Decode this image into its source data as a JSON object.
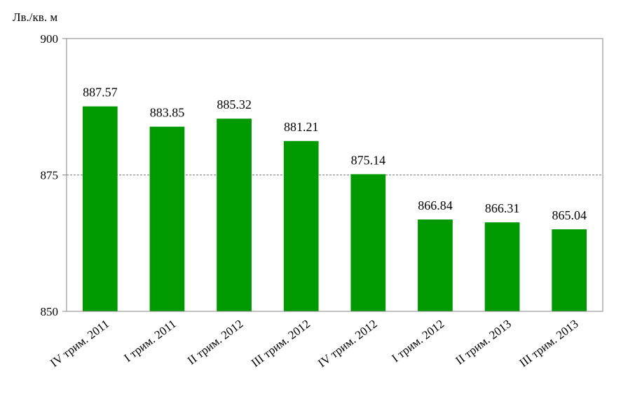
{
  "chart_data": {
    "type": "bar",
    "ylabel": "Лв./кв. м",
    "categories": [
      "IV трим. 2011",
      "I трим. 2011",
      "II трим. 2012",
      "III трим. 2012",
      "IV трим. 2012",
      "I трим. 2012",
      "II трим. 2013",
      "III трим. 2013"
    ],
    "values": [
      887.57,
      883.85,
      885.32,
      881.21,
      875.14,
      866.84,
      866.31,
      865.04
    ],
    "value_labels": [
      "887.57",
      "883.85",
      "885.32",
      "881.21",
      "875.14",
      "866.84",
      "866.31",
      "865.04"
    ],
    "ylim": [
      850,
      900
    ],
    "yticks": [
      850,
      875,
      900
    ],
    "ytick_labels": [
      "850",
      "875",
      "900"
    ],
    "grid": true,
    "legend": "none",
    "bar_color": "#009900",
    "gridline_color": "#808080"
  }
}
